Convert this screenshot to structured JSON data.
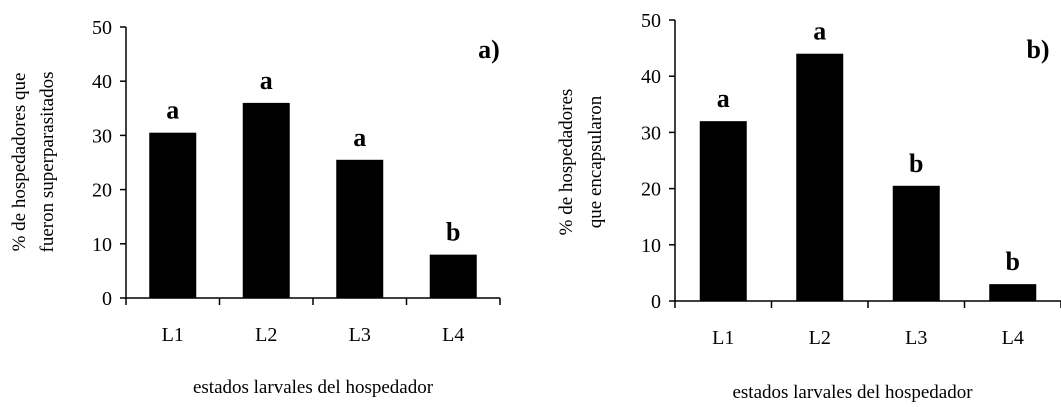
{
  "chart_data": [
    {
      "type": "bar",
      "panel_label": "a)",
      "categories": [
        "L1",
        "L2",
        "L3",
        "L4"
      ],
      "values": [
        30.5,
        36,
        25.5,
        8
      ],
      "significance_labels": [
        "a",
        "a",
        "a",
        "b"
      ],
      "xlabel": "estados larvales del hospedador",
      "ylabel": [
        "% de hospedadores que",
        "fueron superparasitados"
      ],
      "ylim": [
        0,
        50
      ],
      "yticks": [
        0,
        10,
        20,
        30,
        40,
        50
      ],
      "grid": false,
      "bar_color": "#000000"
    },
    {
      "type": "bar",
      "panel_label": "b)",
      "categories": [
        "L1",
        "L2",
        "L3",
        "L4"
      ],
      "values": [
        32,
        44,
        20.5,
        3
      ],
      "significance_labels": [
        "a",
        "a",
        "b",
        "b"
      ],
      "xlabel": "estados larvales del hospedador",
      "ylabel": [
        "% de hospedadores",
        "que encapsularon"
      ],
      "ylim": [
        0,
        50
      ],
      "yticks": [
        0,
        10,
        20,
        30,
        40,
        50
      ],
      "grid": false,
      "bar_color": "#000000"
    }
  ]
}
